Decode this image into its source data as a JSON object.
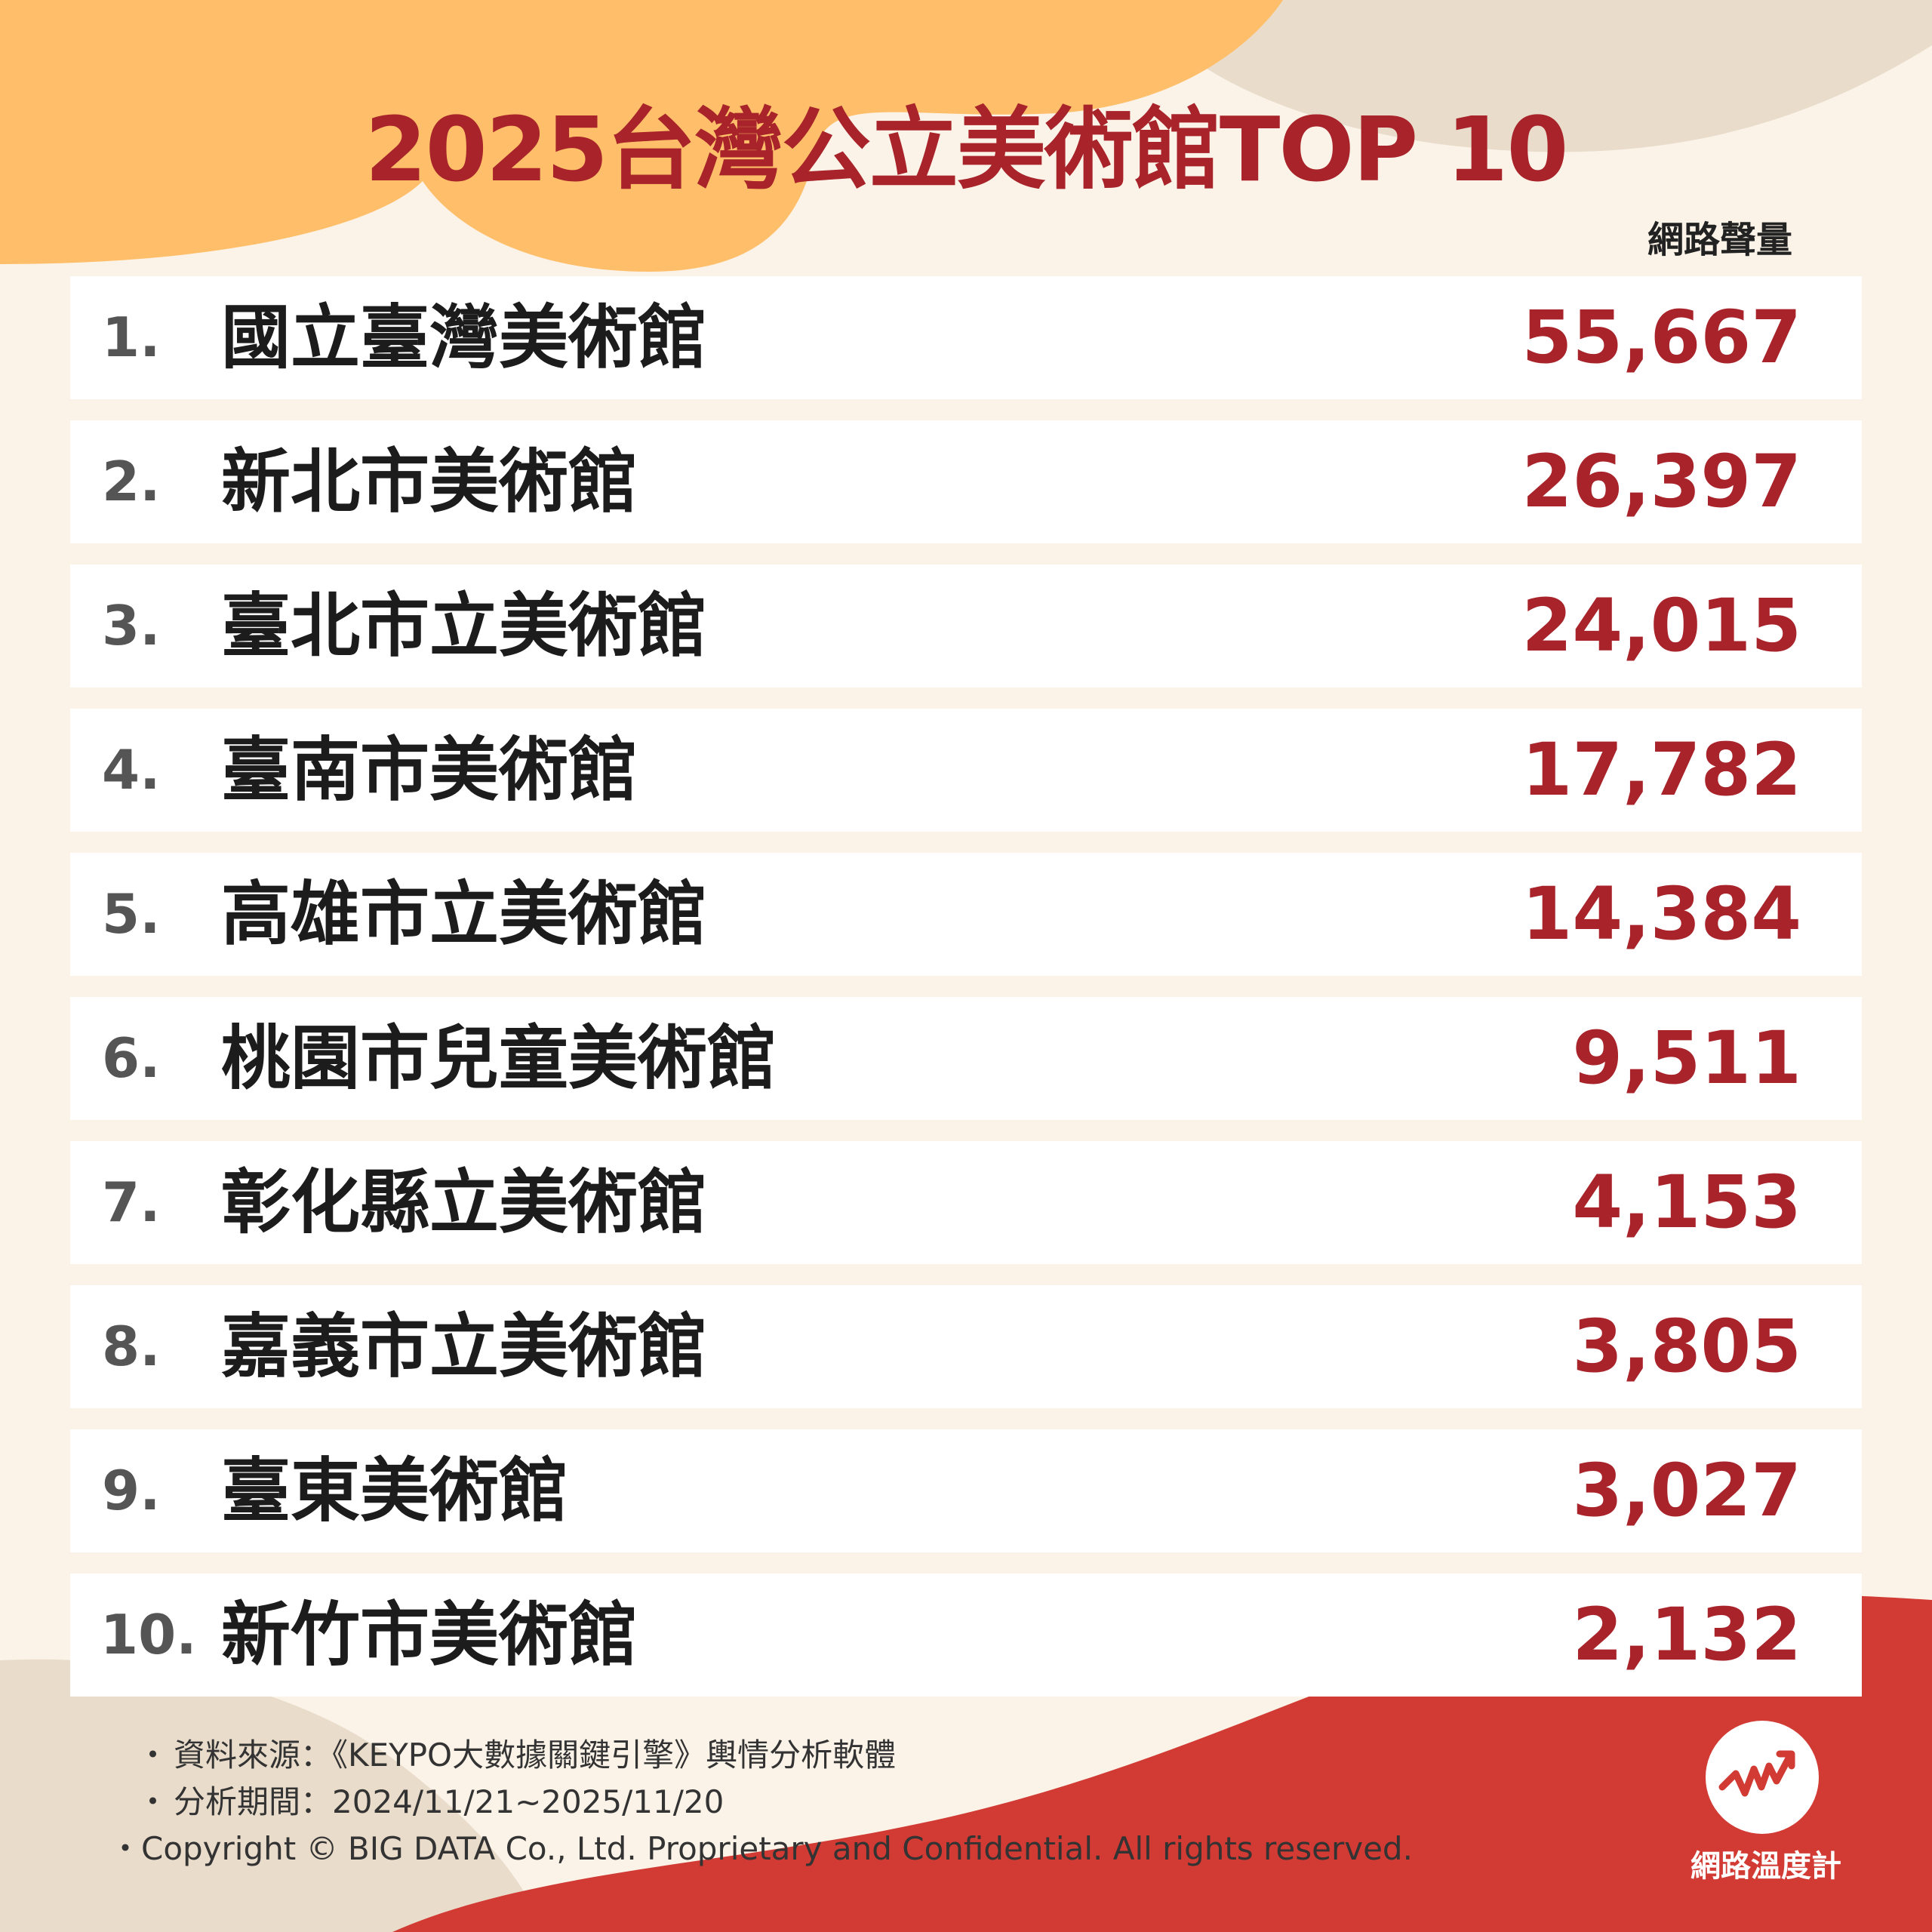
{
  "colors": {
    "background": "#fbf3e8",
    "accent_orange": "#ffbf6a",
    "accent_beige": "#e9dccb",
    "accent_red": "#d23a34",
    "value_red": "#a8232a",
    "title_red": "#a8232a"
  },
  "title": "2025台灣公立美術館TOP 10",
  "metric_label": "網路聲量",
  "chart_data": {
    "type": "table",
    "title": "2025台灣公立美術館TOP 10",
    "columns": [
      "",
      "",
      "網路聲量"
    ],
    "rows": [
      {
        "rank": "1.",
        "name": "國立臺灣美術館",
        "value": 55667,
        "value_text": "55,667"
      },
      {
        "rank": "2.",
        "name": "新北市美術館",
        "value": 26397,
        "value_text": "26,397"
      },
      {
        "rank": "3.",
        "name": "臺北市立美術館",
        "value": 24015,
        "value_text": "24,015"
      },
      {
        "rank": "4.",
        "name": "臺南市美術館",
        "value": 17782,
        "value_text": "17,782"
      },
      {
        "rank": "5.",
        "name": "高雄市立美術館",
        "value": 14384,
        "value_text": "14,384"
      },
      {
        "rank": "6.",
        "name": "桃園市兒童美術館",
        "value": 9511,
        "value_text": "9,511"
      },
      {
        "rank": "7.",
        "name": "彰化縣立美術館",
        "value": 4153,
        "value_text": "4,153"
      },
      {
        "rank": "8.",
        "name": "嘉義市立美術館",
        "value": 3805,
        "value_text": "3,805"
      },
      {
        "rank": "9.",
        "name": "臺東美術館",
        "value": 3027,
        "value_text": "3,027"
      },
      {
        "rank": "10.",
        "name": "新竹市美術館",
        "value": 2132,
        "value_text": "2,132"
      }
    ]
  },
  "footer": {
    "bullet": "・",
    "source": "資料來源：《KEYPO大數據關鍵引擎》輿情分析軟體",
    "period": "分析期間：2024/11/21~2025/11/20",
    "copyright": "・Copyright © BIG DATA Co., Ltd. Proprietary and Confidential. All rights reserved."
  },
  "logo": {
    "icon": "trend-line-icon",
    "text": "網路溫度計"
  }
}
